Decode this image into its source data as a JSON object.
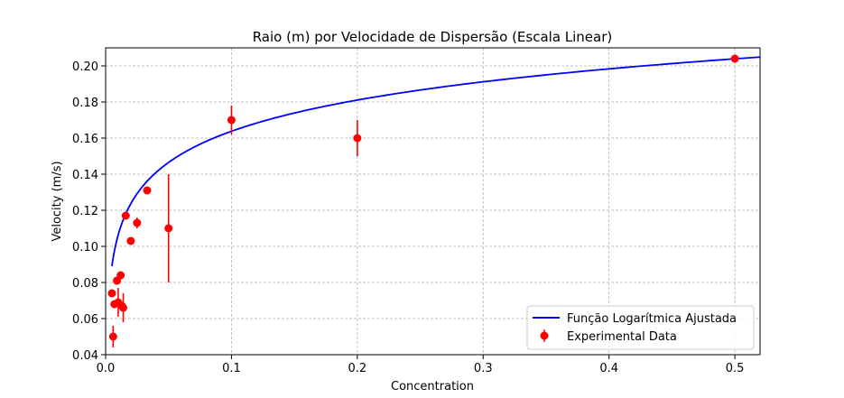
{
  "chart_data": {
    "type": "scatter",
    "title": "Raio (m) por Velocidade de Dispersão (Escala Linear)",
    "xlabel": "Concentration",
    "ylabel": "Velocity (m/s)",
    "xlim": [
      0.0,
      0.52
    ],
    "ylim": [
      0.04,
      0.21
    ],
    "xticks": [
      0.0,
      0.1,
      0.2,
      0.3,
      0.4,
      0.5
    ],
    "xtick_labels": [
      "0.0",
      "0.1",
      "0.2",
      "0.3",
      "0.4",
      "0.5"
    ],
    "yticks": [
      0.04,
      0.06,
      0.08,
      0.1,
      0.12,
      0.14,
      0.16,
      0.18,
      0.2
    ],
    "ytick_labels": [
      "0.04",
      "0.06",
      "0.08",
      "0.10",
      "0.12",
      "0.14",
      "0.16",
      "0.18",
      "0.20"
    ],
    "grid": true,
    "legend_position": "bottom-right",
    "colors": {
      "points": "#ff0000",
      "fit": "#0000ff"
    },
    "series": [
      {
        "name": "Experimental Data",
        "kind": "errorbar",
        "points": [
          {
            "x": 0.005,
            "y": 0.074,
            "err": 0.0
          },
          {
            "x": 0.006,
            "y": 0.05,
            "err": 0.006
          },
          {
            "x": 0.007,
            "y": 0.068,
            "err": 0.0
          },
          {
            "x": 0.009,
            "y": 0.081,
            "err": 0.0
          },
          {
            "x": 0.01,
            "y": 0.069,
            "err": 0.008
          },
          {
            "x": 0.012,
            "y": 0.084,
            "err": 0.0
          },
          {
            "x": 0.013,
            "y": 0.067,
            "err": 0.0
          },
          {
            "x": 0.014,
            "y": 0.066,
            "err": 0.008
          },
          {
            "x": 0.016,
            "y": 0.117,
            "err": 0.0
          },
          {
            "x": 0.02,
            "y": 0.103,
            "err": 0.0
          },
          {
            "x": 0.025,
            "y": 0.113,
            "err": 0.003
          },
          {
            "x": 0.033,
            "y": 0.131,
            "err": 0.0
          },
          {
            "x": 0.05,
            "y": 0.11,
            "err": 0.03
          },
          {
            "x": 0.1,
            "y": 0.17,
            "err": 0.008
          },
          {
            "x": 0.2,
            "y": 0.16,
            "err": 0.01
          },
          {
            "x": 0.5,
            "y": 0.204,
            "err": 0.0
          }
        ]
      },
      {
        "name": "Função Logarítmica Ajustada",
        "kind": "line",
        "model": {
          "form": "a + b*ln(x)",
          "a": 0.2212,
          "b": 0.02494
        },
        "x_range": [
          0.005,
          0.52
        ]
      }
    ]
  }
}
